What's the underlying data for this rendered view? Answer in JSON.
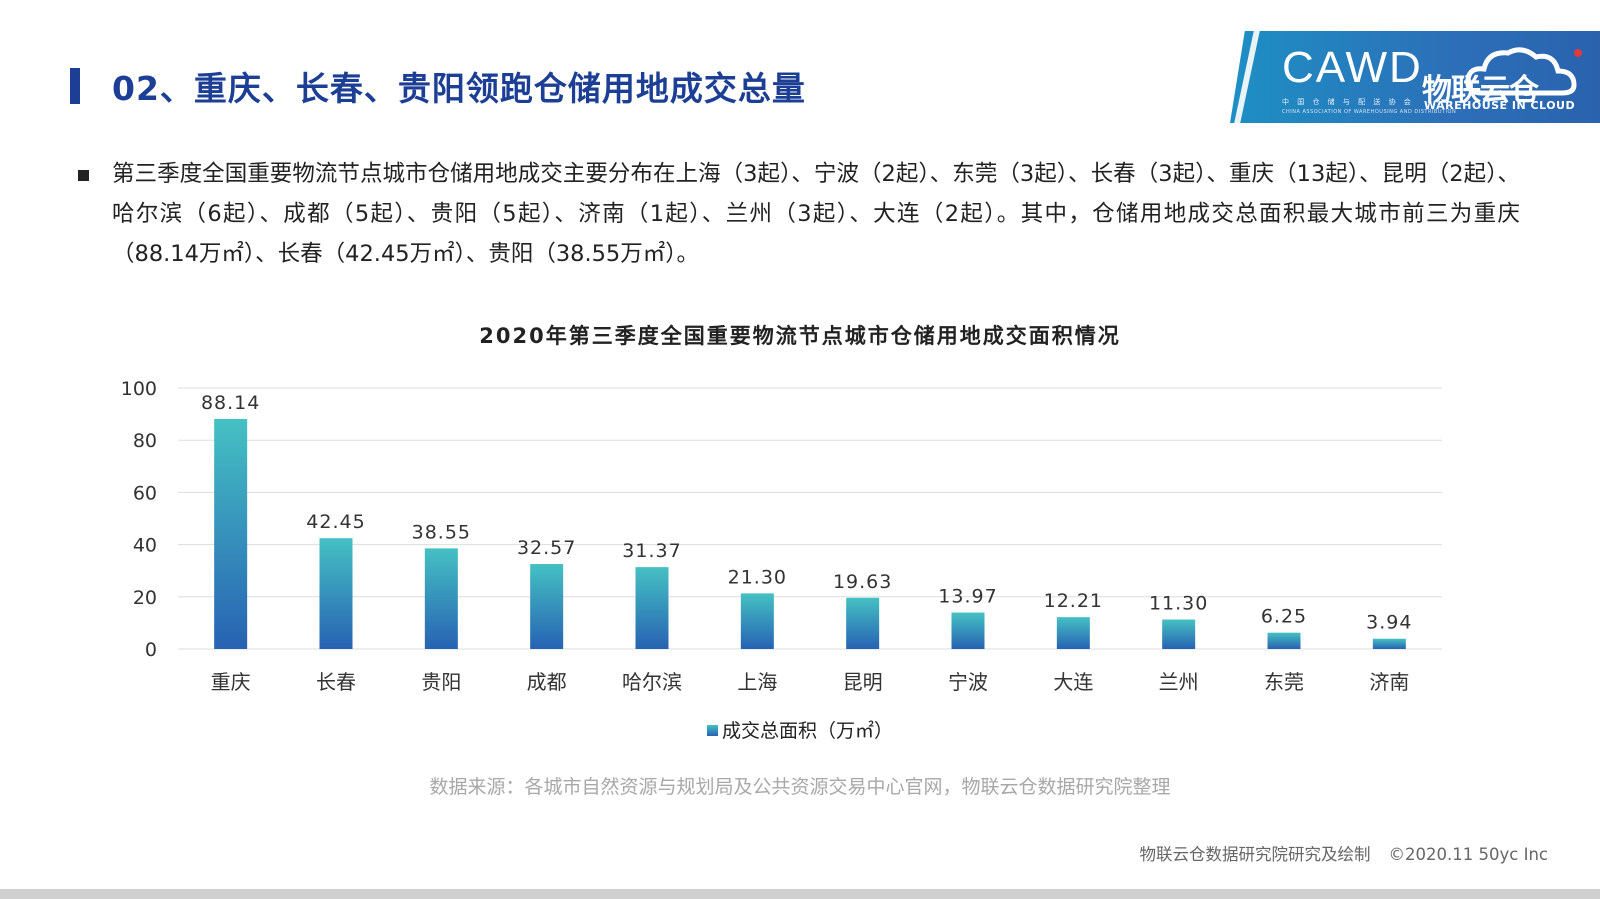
{
  "header": {
    "title": "02、重庆、长春、贵阳领跑仓储用地成交总量"
  },
  "logo": {
    "cawd": "CAWD",
    "cawd_sub_cn": "中 国 仓 储 与 配 送 协 会",
    "cawd_sub_en": "CHINA ASSOCIATION OF WAREHOUSING AND DISTRIBUTION",
    "brand_cn": "物联云仓",
    "brand_en": "WAREHOUSE IN CLOUD",
    "brand_color": "#2a7dc0"
  },
  "paragraph": "第三季度全国重要物流节点城市仓储用地成交主要分布在上海（3起）、宁波（2起）、东莞（3起）、长春（3起）、重庆（13起）、昆明（2起）、哈尔滨（6起）、成都（5起）、贵阳（5起）、济南（1起）、兰州（3起）、大连（2起）。其中，仓储用地成交总面积最大城市前三为重庆（88.14万㎡）、长春（42.45万㎡）、贵阳（38.55万㎡）。",
  "chart_data": {
    "type": "bar",
    "title": "2020年第三季度全国重要物流节点城市仓储用地成交面积情况",
    "categories": [
      "重庆",
      "长春",
      "贵阳",
      "成都",
      "哈尔滨",
      "上海",
      "昆明",
      "宁波",
      "大连",
      "兰州",
      "东莞",
      "济南"
    ],
    "series": [
      {
        "name": "成交总面积（万㎡）",
        "values": [
          88.14,
          42.45,
          38.55,
          32.57,
          31.37,
          21.3,
          19.63,
          13.97,
          12.21,
          11.3,
          6.25,
          3.94
        ],
        "labels": [
          "88.14",
          "42.45",
          "38.55",
          "32.57",
          "31.37",
          "21.30",
          "19.63",
          "13.97",
          "12.21",
          "11.30",
          "6.25",
          "3.94"
        ]
      }
    ],
    "ylim": [
      0,
      100
    ],
    "yticks": [
      0,
      20,
      40,
      60,
      80,
      100
    ],
    "grid": true,
    "legend_position": "bottom",
    "colors": {
      "bar_top": "#45c1c3",
      "bar_bottom": "#2762b3",
      "grid": "#dddddd"
    }
  },
  "source": "数据来源：各城市自然资源与规划局及公共资源交易中心官网，物联云仓数据研究院整理",
  "footer": {
    "credit": "物联云仓数据研究院研究及绘制",
    "copyright": "©2020.11 50yc Inc"
  }
}
